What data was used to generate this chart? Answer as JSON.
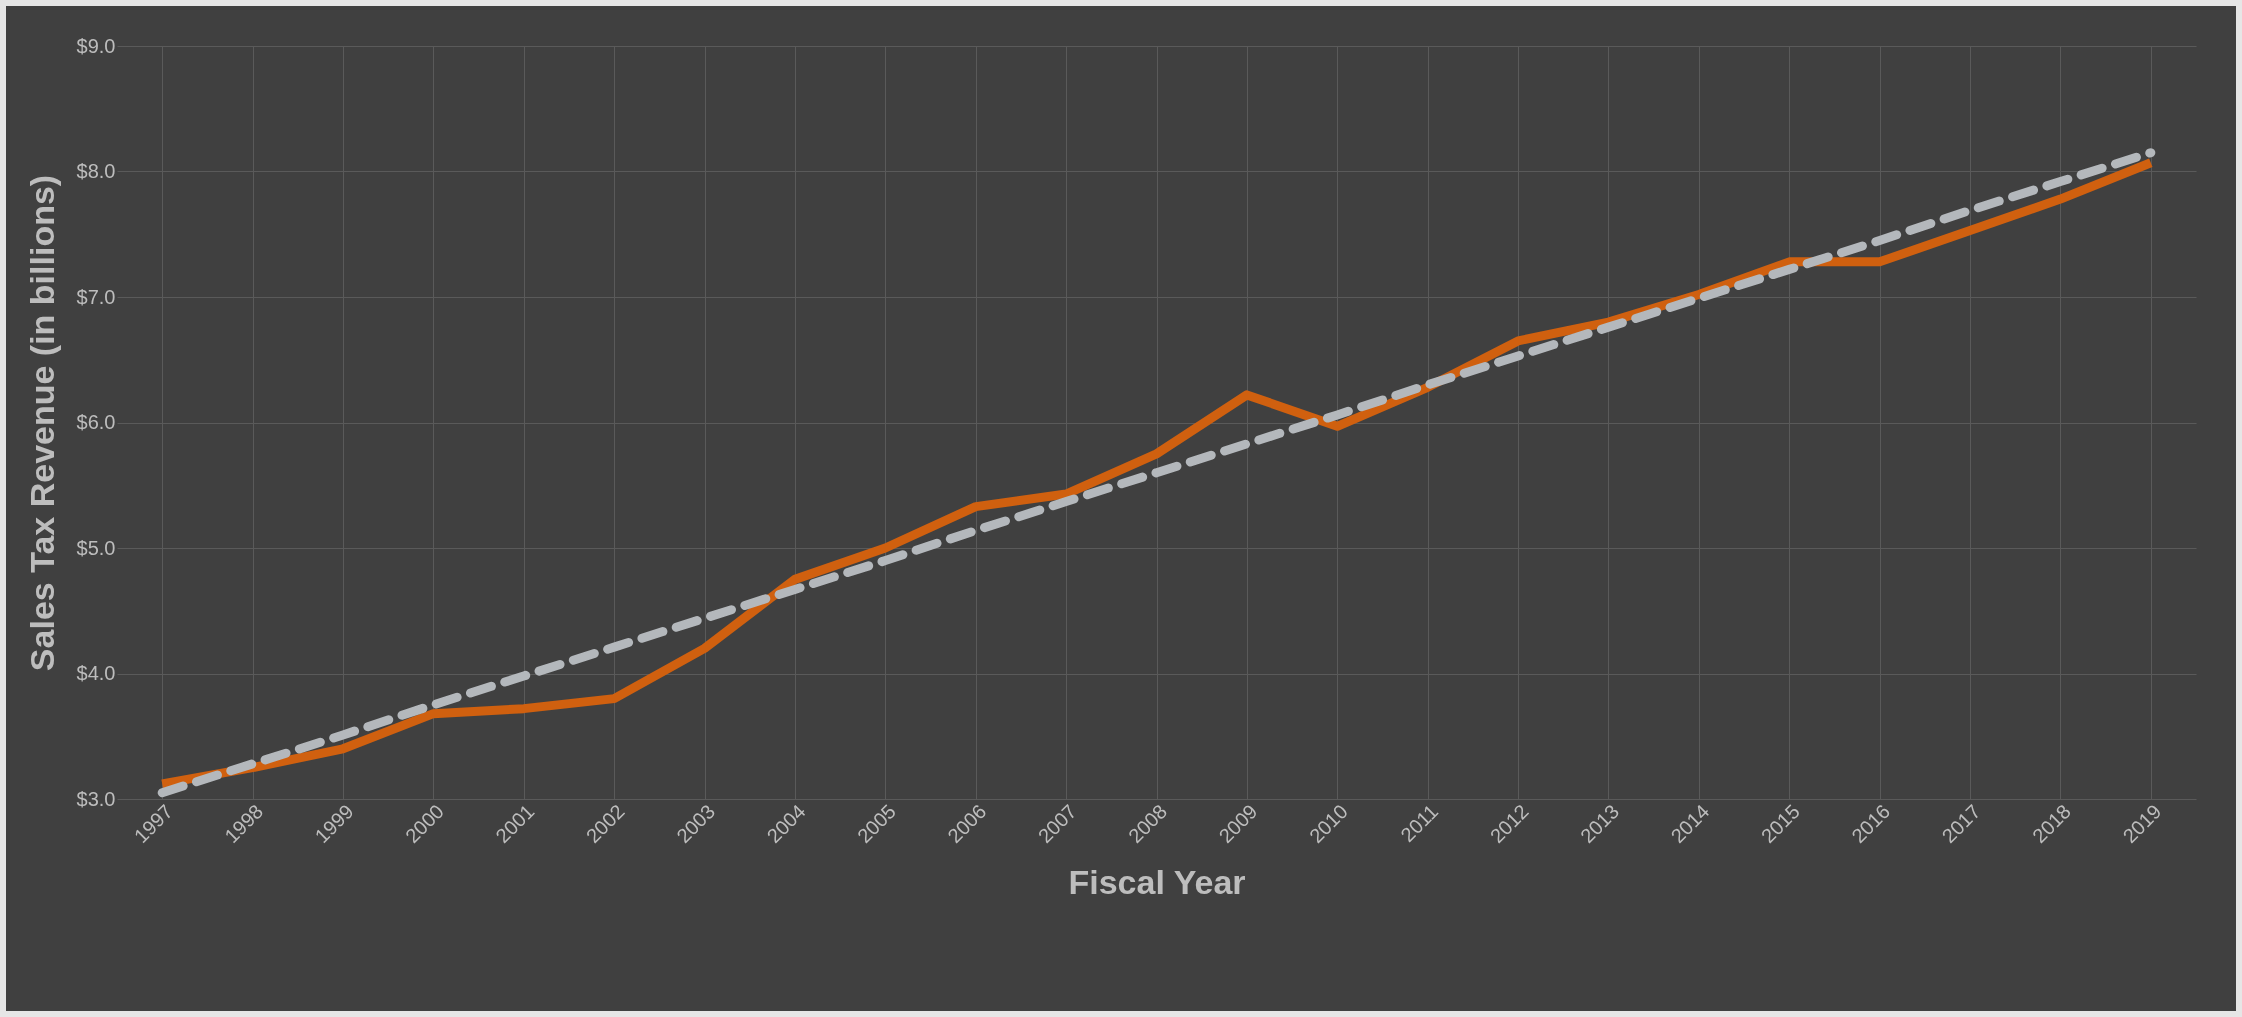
{
  "chart_data": {
    "type": "line",
    "xlabel": "Fiscal Year",
    "ylabel": "Sales Tax Revenue (in billions)",
    "categories": [
      "1997",
      "1998",
      "1999",
      "2000",
      "2001",
      "2002",
      "2003",
      "2004",
      "2005",
      "2006",
      "2007",
      "2008",
      "2009",
      "2010",
      "2011",
      "2012",
      "2013",
      "2014",
      "2015",
      "2016",
      "2017",
      "2018",
      "2019"
    ],
    "series": [
      {
        "color": "#d0600f",
        "values": [
          3.12,
          3.25,
          3.4,
          3.68,
          3.72,
          3.8,
          4.2,
          4.75,
          5.0,
          5.33,
          5.43,
          5.75,
          6.22,
          5.97,
          6.28,
          6.65,
          6.8,
          7.02,
          7.28,
          7.28,
          7.53,
          7.78,
          8.07
        ]
      },
      {
        "type": "line",
        "line_style": "dashed",
        "color": "#b4b8bc",
        "values": [
          3.05,
          3.28,
          3.51,
          3.75,
          3.98,
          4.21,
          4.44,
          4.67,
          4.9,
          5.14,
          5.37,
          5.6,
          5.83,
          6.06,
          6.3,
          6.53,
          6.76,
          6.99,
          7.22,
          7.45,
          7.69,
          7.92,
          8.15
        ]
      }
    ],
    "ylim": [
      3,
      9
    ],
    "yticks": [
      {
        "value": 3,
        "label": "$3.0"
      },
      {
        "value": 4,
        "label": "$4.0"
      },
      {
        "value": 5,
        "label": "$5.0"
      },
      {
        "value": 6,
        "label": "$6.0"
      },
      {
        "value": 7,
        "label": "$7.0"
      },
      {
        "value": 8,
        "label": "$8.0"
      },
      {
        "value": 9,
        "label": "$9.0"
      }
    ],
    "grid": true,
    "legend": false
  }
}
